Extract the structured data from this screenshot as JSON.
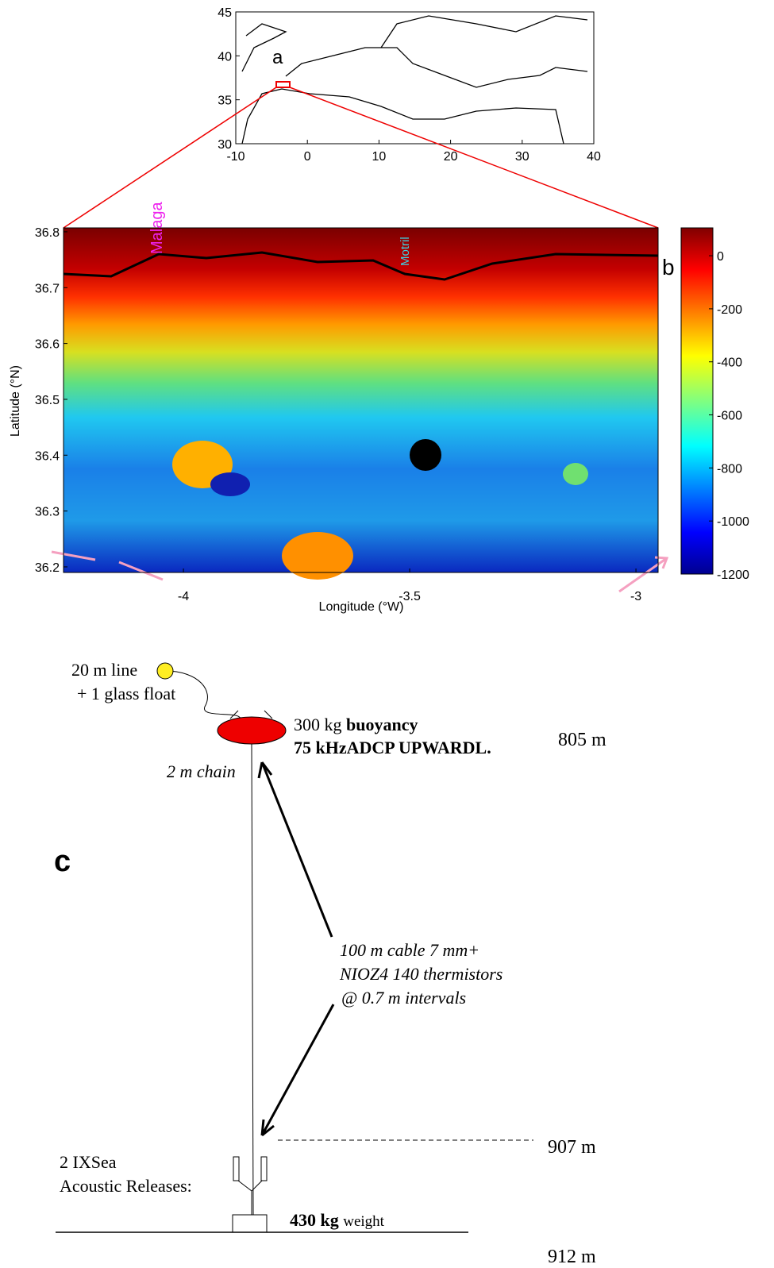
{
  "panel_a": {
    "label": "a",
    "xlim": [
      -10,
      40
    ],
    "ylim": [
      30,
      45
    ],
    "xticks": [
      -10,
      0,
      10,
      20,
      30,
      40
    ],
    "yticks": [
      30,
      35,
      40,
      45
    ]
  },
  "panel_b": {
    "label": "b",
    "xlabel": "Longitude (°W)",
    "ylabel": "Latitude (°N)",
    "xlim": [
      -4.265,
      -2.951
    ],
    "ylim": [
      36.19,
      36.807
    ],
    "xticks": [
      -4,
      -3.5,
      -3
    ],
    "yticks": [
      36.2,
      36.3,
      36.4,
      36.5,
      36.6,
      36.7,
      36.8
    ],
    "places": [
      "Malaga",
      "Motril"
    ],
    "colorbar": {
      "lim": [
        -1200,
        105
      ],
      "ticks": [
        0,
        -200,
        -400,
        -600,
        -800,
        -1000,
        -1200
      ]
    }
  },
  "panel_c": {
    "label": "c",
    "float": [
      "20 m line",
      "+ 1 glass float"
    ],
    "buoy": {
      "mass": "300 kg",
      "mass_bold": "buoyancy",
      "instrument": "75 kHzADCP UPWARDL."
    },
    "chain": "2 m chain",
    "cable": [
      "100 m cable 7 mm+",
      "NIOZ4 140 thermistors",
      "@ 0.7  m intervals"
    ],
    "releases": [
      "2 IXSea",
      "Acoustic Releases:"
    ],
    "weight": {
      "bold": "430 kg",
      "text": "weight"
    },
    "depths": [
      "805 m",
      "907 m",
      "912 m"
    ]
  }
}
